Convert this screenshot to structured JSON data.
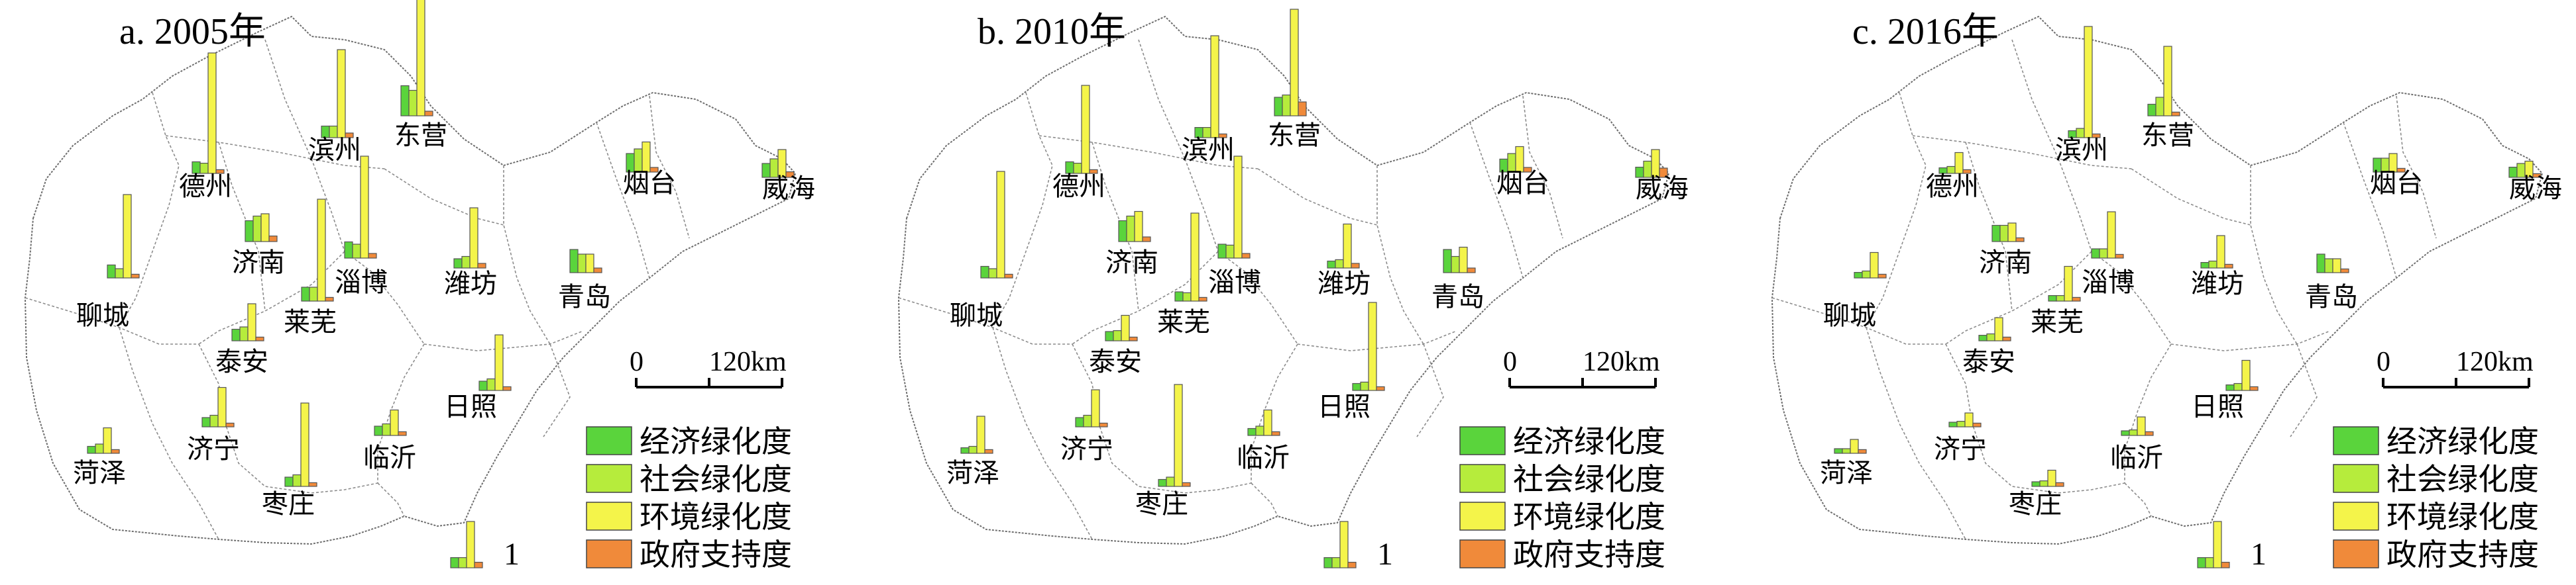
{
  "colors": {
    "economic": "#5ad43c",
    "social": "#b6ec3c",
    "environment": "#f4f44a",
    "government": "#f08a3a",
    "bar_stroke": "#555555",
    "boundary": "#8c8c8c",
    "coast": "#6e6e6e"
  },
  "legend": {
    "items": [
      {
        "label": "经济绿化度",
        "color_key": "economic"
      },
      {
        "label": "社会绿化度",
        "color_key": "social"
      },
      {
        "label": "环境绿化度",
        "color_key": "environment"
      },
      {
        "label": "政府支持度",
        "color_key": "government"
      }
    ],
    "key_value": "1"
  },
  "scale": {
    "zero": "0",
    "distance": "120km"
  },
  "panels": [
    {
      "title": "a. 2005年",
      "cities": [
        {
          "name": "德州",
          "values": [
            0.25,
            0.22,
            2.6,
            0.08
          ]
        },
        {
          "name": "滨州",
          "values": [
            0.25,
            0.25,
            1.9,
            0.1
          ]
        },
        {
          "name": "东营",
          "values": [
            0.65,
            0.55,
            3.4,
            0.1
          ]
        },
        {
          "name": "烟台",
          "values": [
            0.4,
            0.5,
            0.65,
            0.1
          ]
        },
        {
          "name": "威海",
          "values": [
            0.3,
            0.4,
            0.6,
            0.12
          ]
        },
        {
          "name": "聊城",
          "values": [
            0.28,
            0.2,
            1.8,
            0.08
          ]
        },
        {
          "name": "济南",
          "values": [
            0.45,
            0.55,
            0.6,
            0.12
          ]
        },
        {
          "name": "淄博",
          "values": [
            0.35,
            0.3,
            2.2,
            0.1
          ]
        },
        {
          "name": "潍坊",
          "values": [
            0.2,
            0.25,
            1.3,
            0.1
          ]
        },
        {
          "name": "青岛",
          "values": [
            0.5,
            0.4,
            0.4,
            0.1
          ]
        },
        {
          "name": "莱芜",
          "values": [
            0.3,
            0.3,
            2.2,
            0.08
          ]
        },
        {
          "name": "泰安",
          "values": [
            0.25,
            0.3,
            0.8,
            0.08
          ]
        },
        {
          "name": "济宁",
          "values": [
            0.2,
            0.25,
            0.85,
            0.08
          ]
        },
        {
          "name": "日照",
          "values": [
            0.2,
            0.25,
            1.2,
            0.08
          ]
        },
        {
          "name": "临沂",
          "values": [
            0.2,
            0.25,
            0.55,
            0.08
          ]
        },
        {
          "name": "菏泽",
          "values": [
            0.15,
            0.2,
            0.55,
            0.08
          ]
        },
        {
          "name": "枣庄",
          "values": [
            0.2,
            0.25,
            1.8,
            0.08
          ]
        }
      ]
    },
    {
      "title": "b. 2010年",
      "cities": [
        {
          "name": "德州",
          "values": [
            0.25,
            0.22,
            1.9,
            0.08
          ]
        },
        {
          "name": "滨州",
          "values": [
            0.22,
            0.22,
            2.2,
            0.08
          ]
        },
        {
          "name": "东营",
          "values": [
            0.4,
            0.45,
            2.3,
            0.3
          ]
        },
        {
          "name": "烟台",
          "values": [
            0.28,
            0.4,
            0.55,
            0.1
          ]
        },
        {
          "name": "威海",
          "values": [
            0.22,
            0.35,
            0.6,
            0.2
          ]
        },
        {
          "name": "聊城",
          "values": [
            0.25,
            0.2,
            2.3,
            0.08
          ]
        },
        {
          "name": "济南",
          "values": [
            0.45,
            0.55,
            0.65,
            0.1
          ]
        },
        {
          "name": "淄博",
          "values": [
            0.3,
            0.28,
            2.2,
            0.1
          ]
        },
        {
          "name": "潍坊",
          "values": [
            0.15,
            0.18,
            0.95,
            0.1
          ]
        },
        {
          "name": "青岛",
          "values": [
            0.5,
            0.35,
            0.55,
            0.1
          ]
        },
        {
          "name": "莱芜",
          "values": [
            0.2,
            0.18,
            1.9,
            0.08
          ]
        },
        {
          "name": "泰安",
          "values": [
            0.2,
            0.22,
            0.55,
            0.08
          ]
        },
        {
          "name": "济宁",
          "values": [
            0.2,
            0.25,
            0.8,
            0.08
          ]
        },
        {
          "name": "日照",
          "values": [
            0.15,
            0.18,
            1.9,
            0.08
          ]
        },
        {
          "name": "临沂",
          "values": [
            0.15,
            0.2,
            0.55,
            0.08
          ]
        },
        {
          "name": "菏泽",
          "values": [
            0.12,
            0.15,
            0.8,
            0.08
          ]
        },
        {
          "name": "枣庄",
          "values": [
            0.15,
            0.2,
            2.2,
            0.08
          ]
        }
      ]
    },
    {
      "title": "c. 2016年",
      "cities": [
        {
          "name": "德州",
          "values": [
            0.12,
            0.15,
            0.45,
            0.08
          ]
        },
        {
          "name": "滨州",
          "values": [
            0.15,
            0.2,
            2.4,
            0.08
          ]
        },
        {
          "name": "东营",
          "values": [
            0.25,
            0.4,
            1.5,
            0.08
          ]
        },
        {
          "name": "烟台",
          "values": [
            0.3,
            0.3,
            0.4,
            0.08
          ]
        },
        {
          "name": "威海",
          "values": [
            0.22,
            0.3,
            0.35,
            0.08
          ]
        },
        {
          "name": "聊城",
          "values": [
            0.12,
            0.15,
            0.55,
            0.08
          ]
        },
        {
          "name": "济南",
          "values": [
            0.35,
            0.35,
            0.4,
            0.08
          ]
        },
        {
          "name": "淄博",
          "values": [
            0.2,
            0.2,
            1.0,
            0.08
          ]
        },
        {
          "name": "潍坊",
          "values": [
            0.12,
            0.15,
            0.7,
            0.08
          ]
        },
        {
          "name": "青岛",
          "values": [
            0.4,
            0.3,
            0.3,
            0.08
          ]
        },
        {
          "name": "莱芜",
          "values": [
            0.12,
            0.12,
            0.75,
            0.08
          ]
        },
        {
          "name": "泰安",
          "values": [
            0.12,
            0.15,
            0.5,
            0.08
          ]
        },
        {
          "name": "济宁",
          "values": [
            0.1,
            0.12,
            0.3,
            0.08
          ]
        },
        {
          "name": "日照",
          "values": [
            0.12,
            0.15,
            0.65,
            0.08
          ]
        },
        {
          "name": "临沂",
          "values": [
            0.1,
            0.12,
            0.4,
            0.08
          ]
        },
        {
          "name": "菏泽",
          "values": [
            0.1,
            0.1,
            0.3,
            0.08
          ]
        },
        {
          "name": "枣庄",
          "values": [
            0.1,
            0.12,
            0.35,
            0.08
          ]
        }
      ]
    }
  ]
}
